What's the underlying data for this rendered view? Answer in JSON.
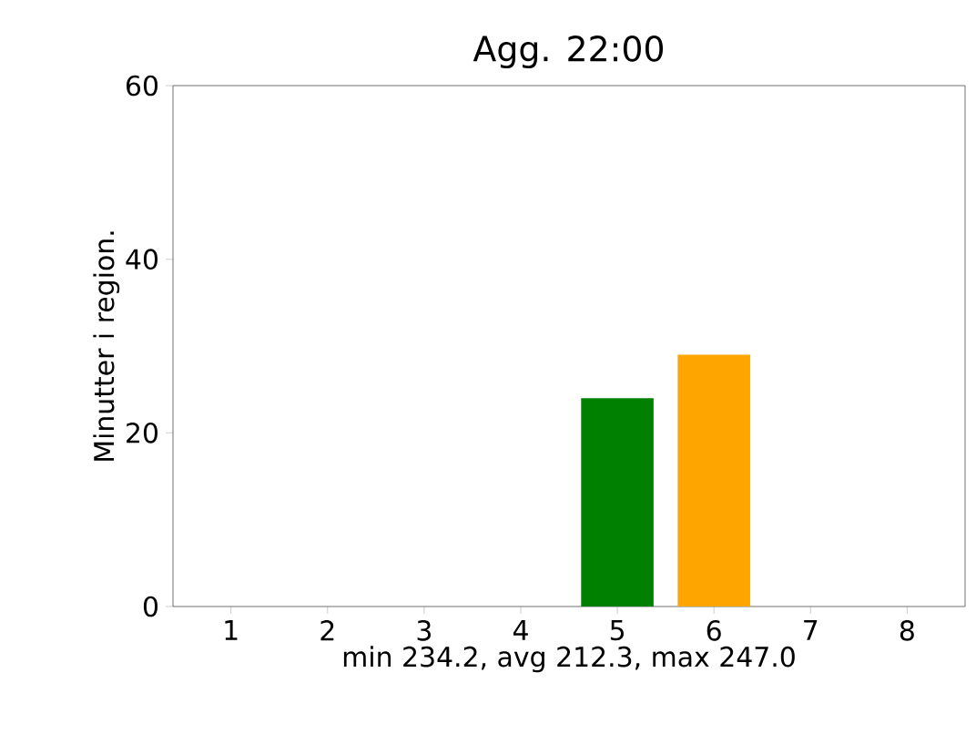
{
  "chart_data": {
    "type": "bar",
    "title": "Agg. 22:00",
    "xlabel": "min 234.2, avg 212.3, max 247.0",
    "ylabel": "Minutter i region.",
    "categories": [
      "1",
      "2",
      "3",
      "4",
      "5",
      "6",
      "7",
      "8"
    ],
    "values": [
      0,
      0,
      0,
      0,
      24,
      29,
      0,
      0
    ],
    "colors": [
      "#008000",
      "#008000",
      "#008000",
      "#008000",
      "#008000",
      "#ffa500",
      "#008000",
      "#008000"
    ],
    "ylim": [
      0,
      60
    ],
    "yticks": [
      0,
      20,
      40,
      60
    ],
    "grid": false
  }
}
